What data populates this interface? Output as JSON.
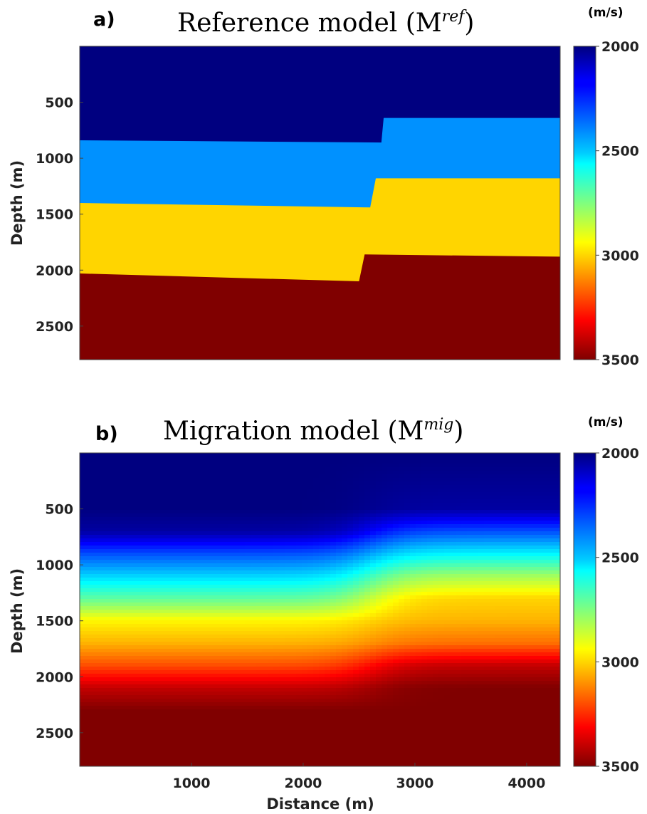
{
  "chart_data": [
    {
      "type": "heatmap",
      "panel_label": "a)",
      "title": "Reference model (M",
      "title_superscript": "ref",
      "title_close": ")",
      "colorbar_unit": "(m/s)",
      "xlabel": "",
      "ylabel": "Depth (m)",
      "xlim": [
        0,
        4300
      ],
      "ylim": [
        2800,
        0
      ],
      "yticks": [
        500,
        1000,
        1500,
        2000,
        2500
      ],
      "xticks": [],
      "colorbar": {
        "colormap": "jet-reversed",
        "range": [
          2000,
          3500
        ],
        "ticks": [
          2000,
          2500,
          3000,
          3500
        ]
      },
      "layers": [
        {
          "velocity": 2000,
          "top": null
        },
        {
          "velocity": 2400,
          "top": {
            "left": [
              [
                0,
                840
              ],
              [
                2700,
                860
              ]
            ],
            "right": [
              [
                2720,
                640
              ],
              [
                4300,
                640
              ]
            ]
          }
        },
        {
          "velocity": 3000,
          "top": {
            "left": [
              [
                0,
                1400
              ],
              [
                2600,
                1440
              ]
            ],
            "right": [
              [
                2650,
                1180
              ],
              [
                4300,
                1180
              ]
            ]
          }
        },
        {
          "velocity": 3500,
          "top": {
            "left": [
              [
                0,
                2030
              ],
              [
                2500,
                2100
              ]
            ],
            "right": [
              [
                2550,
                1860
              ],
              [
                4300,
                1880
              ]
            ]
          }
        }
      ],
      "fault": {
        "x_top": 2720,
        "x_bottom": 2480
      }
    },
    {
      "type": "heatmap",
      "panel_label": "b)",
      "title": "Migration model (M",
      "title_superscript": "mig",
      "title_close": ")",
      "colorbar_unit": "(m/s)",
      "xlabel": "Distance (m)",
      "ylabel": "Depth (m)",
      "xlim": [
        0,
        4300
      ],
      "ylim": [
        2800,
        0
      ],
      "xticks": [
        1000,
        2000,
        3000,
        4000
      ],
      "yticks": [
        500,
        1000,
        1500,
        2000,
        2500
      ],
      "colorbar": {
        "colormap": "jet-reversed",
        "range": [
          2000,
          3500
        ],
        "ticks": [
          2000,
          2500,
          3000,
          3500
        ]
      },
      "description": "smoothed version of reference model",
      "smooth_profile": {
        "depth": [
          0,
          500,
          700,
          900,
          1100,
          1300,
          1500,
          1700,
          1900,
          2100,
          2300,
          2800
        ],
        "velocity_left": [
          2000,
          2000,
          2050,
          2300,
          2500,
          2700,
          2950,
          3050,
          3200,
          3400,
          3500,
          3500
        ],
        "velocity_right": [
          2000,
          2050,
          2300,
          2550,
          2800,
          3000,
          3050,
          3150,
          3400,
          3500,
          3500,
          3500
        ]
      }
    }
  ]
}
